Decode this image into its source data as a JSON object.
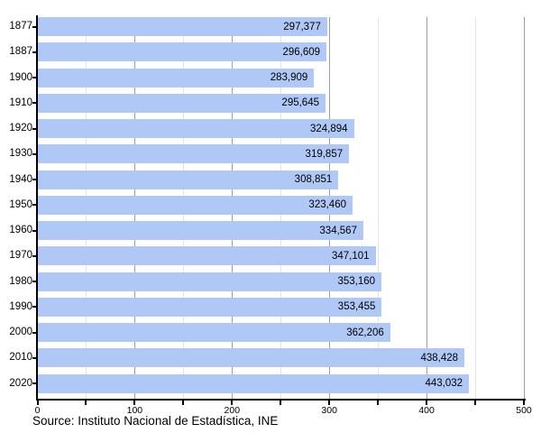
{
  "chart_data": {
    "type": "bar",
    "orientation": "horizontal",
    "title": "",
    "xlabel": "",
    "ylabel": "",
    "categories": [
      "1877",
      "1887",
      "1900",
      "1910",
      "1920",
      "1930",
      "1940",
      "1950",
      "1960",
      "1970",
      "1980",
      "1990",
      "2000",
      "2010",
      "2020"
    ],
    "values": [
      297377,
      296609,
      283909,
      295645,
      324894,
      319857,
      308851,
      323460,
      334567,
      347101,
      353160,
      353455,
      362206,
      438428,
      443032
    ],
    "value_labels": [
      "297,377",
      "296,609",
      "283,909",
      "295,645",
      "324,894",
      "319,857",
      "308,851",
      "323,460",
      "334,567",
      "347,101",
      "353,160",
      "353,455",
      "362,206",
      "438,428",
      "443,032"
    ],
    "xlim": [
      0,
      500
    ],
    "x_major_ticks": [
      0,
      100,
      200,
      300,
      400,
      500
    ],
    "x_major_tick_labels": [
      "0",
      "100",
      "200",
      "300",
      "400",
      "500"
    ],
    "x_minor_ticks": [
      50,
      150,
      250,
      350,
      450
    ],
    "grid": "vertical, behind bars",
    "legend": "none",
    "source": "Source: Instituto Nacional de Estadística, INE",
    "colors": {
      "bar": "#afc8f5",
      "major_grid": "#9e9e9e",
      "minor_grid": "#e4e4e4",
      "axis": "#000000",
      "text": "#000000",
      "background": "#ffffff"
    }
  }
}
